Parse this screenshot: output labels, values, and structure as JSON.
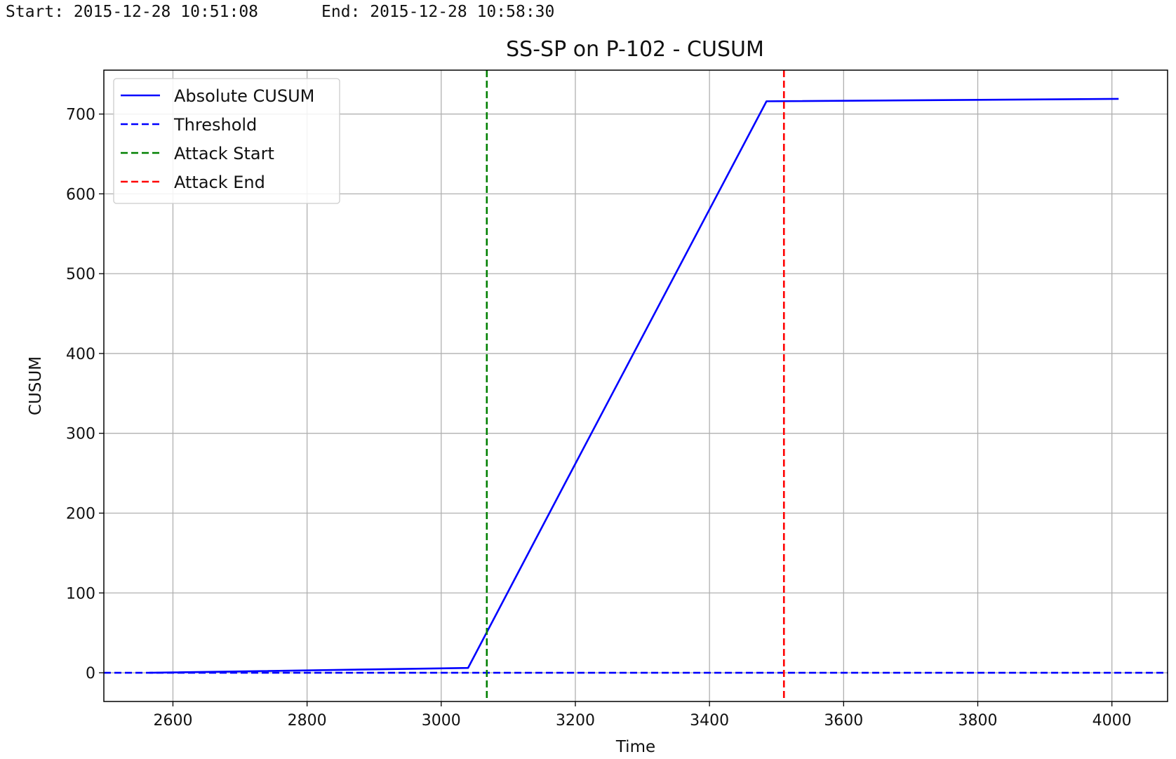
{
  "header": {
    "start": "Start: 2015-12-28 10:51:08",
    "end": "End: 2015-12-28 10:58:30"
  },
  "chart_data": {
    "type": "line",
    "title": "SS-SP on P-102  -  CUSUM",
    "xlabel": "Time",
    "ylabel": "CUSUM",
    "xlim": [
      2497,
      4083
    ],
    "ylim": [
      -36,
      755
    ],
    "xticks": [
      2600,
      2800,
      3000,
      3200,
      3400,
      3600,
      3800,
      4000
    ],
    "yticks": [
      0,
      100,
      200,
      300,
      400,
      500,
      600,
      700
    ],
    "grid": true,
    "legend_position": "top-left",
    "series": [
      {
        "name": "Absolute CUSUM",
        "style": "solid",
        "color": "#0000ff",
        "x": [
          2565,
          3040,
          3180,
          3485,
          4010
        ],
        "y": [
          0,
          6,
          230,
          716,
          719
        ]
      }
    ],
    "hlines": [
      {
        "name": "Threshold",
        "y": 0,
        "style": "dashed",
        "color": "#0000ff"
      }
    ],
    "vlines": [
      {
        "name": "Attack Start",
        "x": 3068,
        "style": "dashed",
        "color": "#008000"
      },
      {
        "name": "Attack End",
        "x": 3511,
        "style": "dashed",
        "color": "#ff0000"
      }
    ],
    "legend": [
      {
        "label": "Absolute CUSUM",
        "color": "#0000ff",
        "style": "solid"
      },
      {
        "label": "Threshold",
        "color": "#0000ff",
        "style": "dashed"
      },
      {
        "label": "Attack Start",
        "color": "#008000",
        "style": "dashed"
      },
      {
        "label": "Attack End",
        "color": "#ff0000",
        "style": "dashed"
      }
    ]
  }
}
